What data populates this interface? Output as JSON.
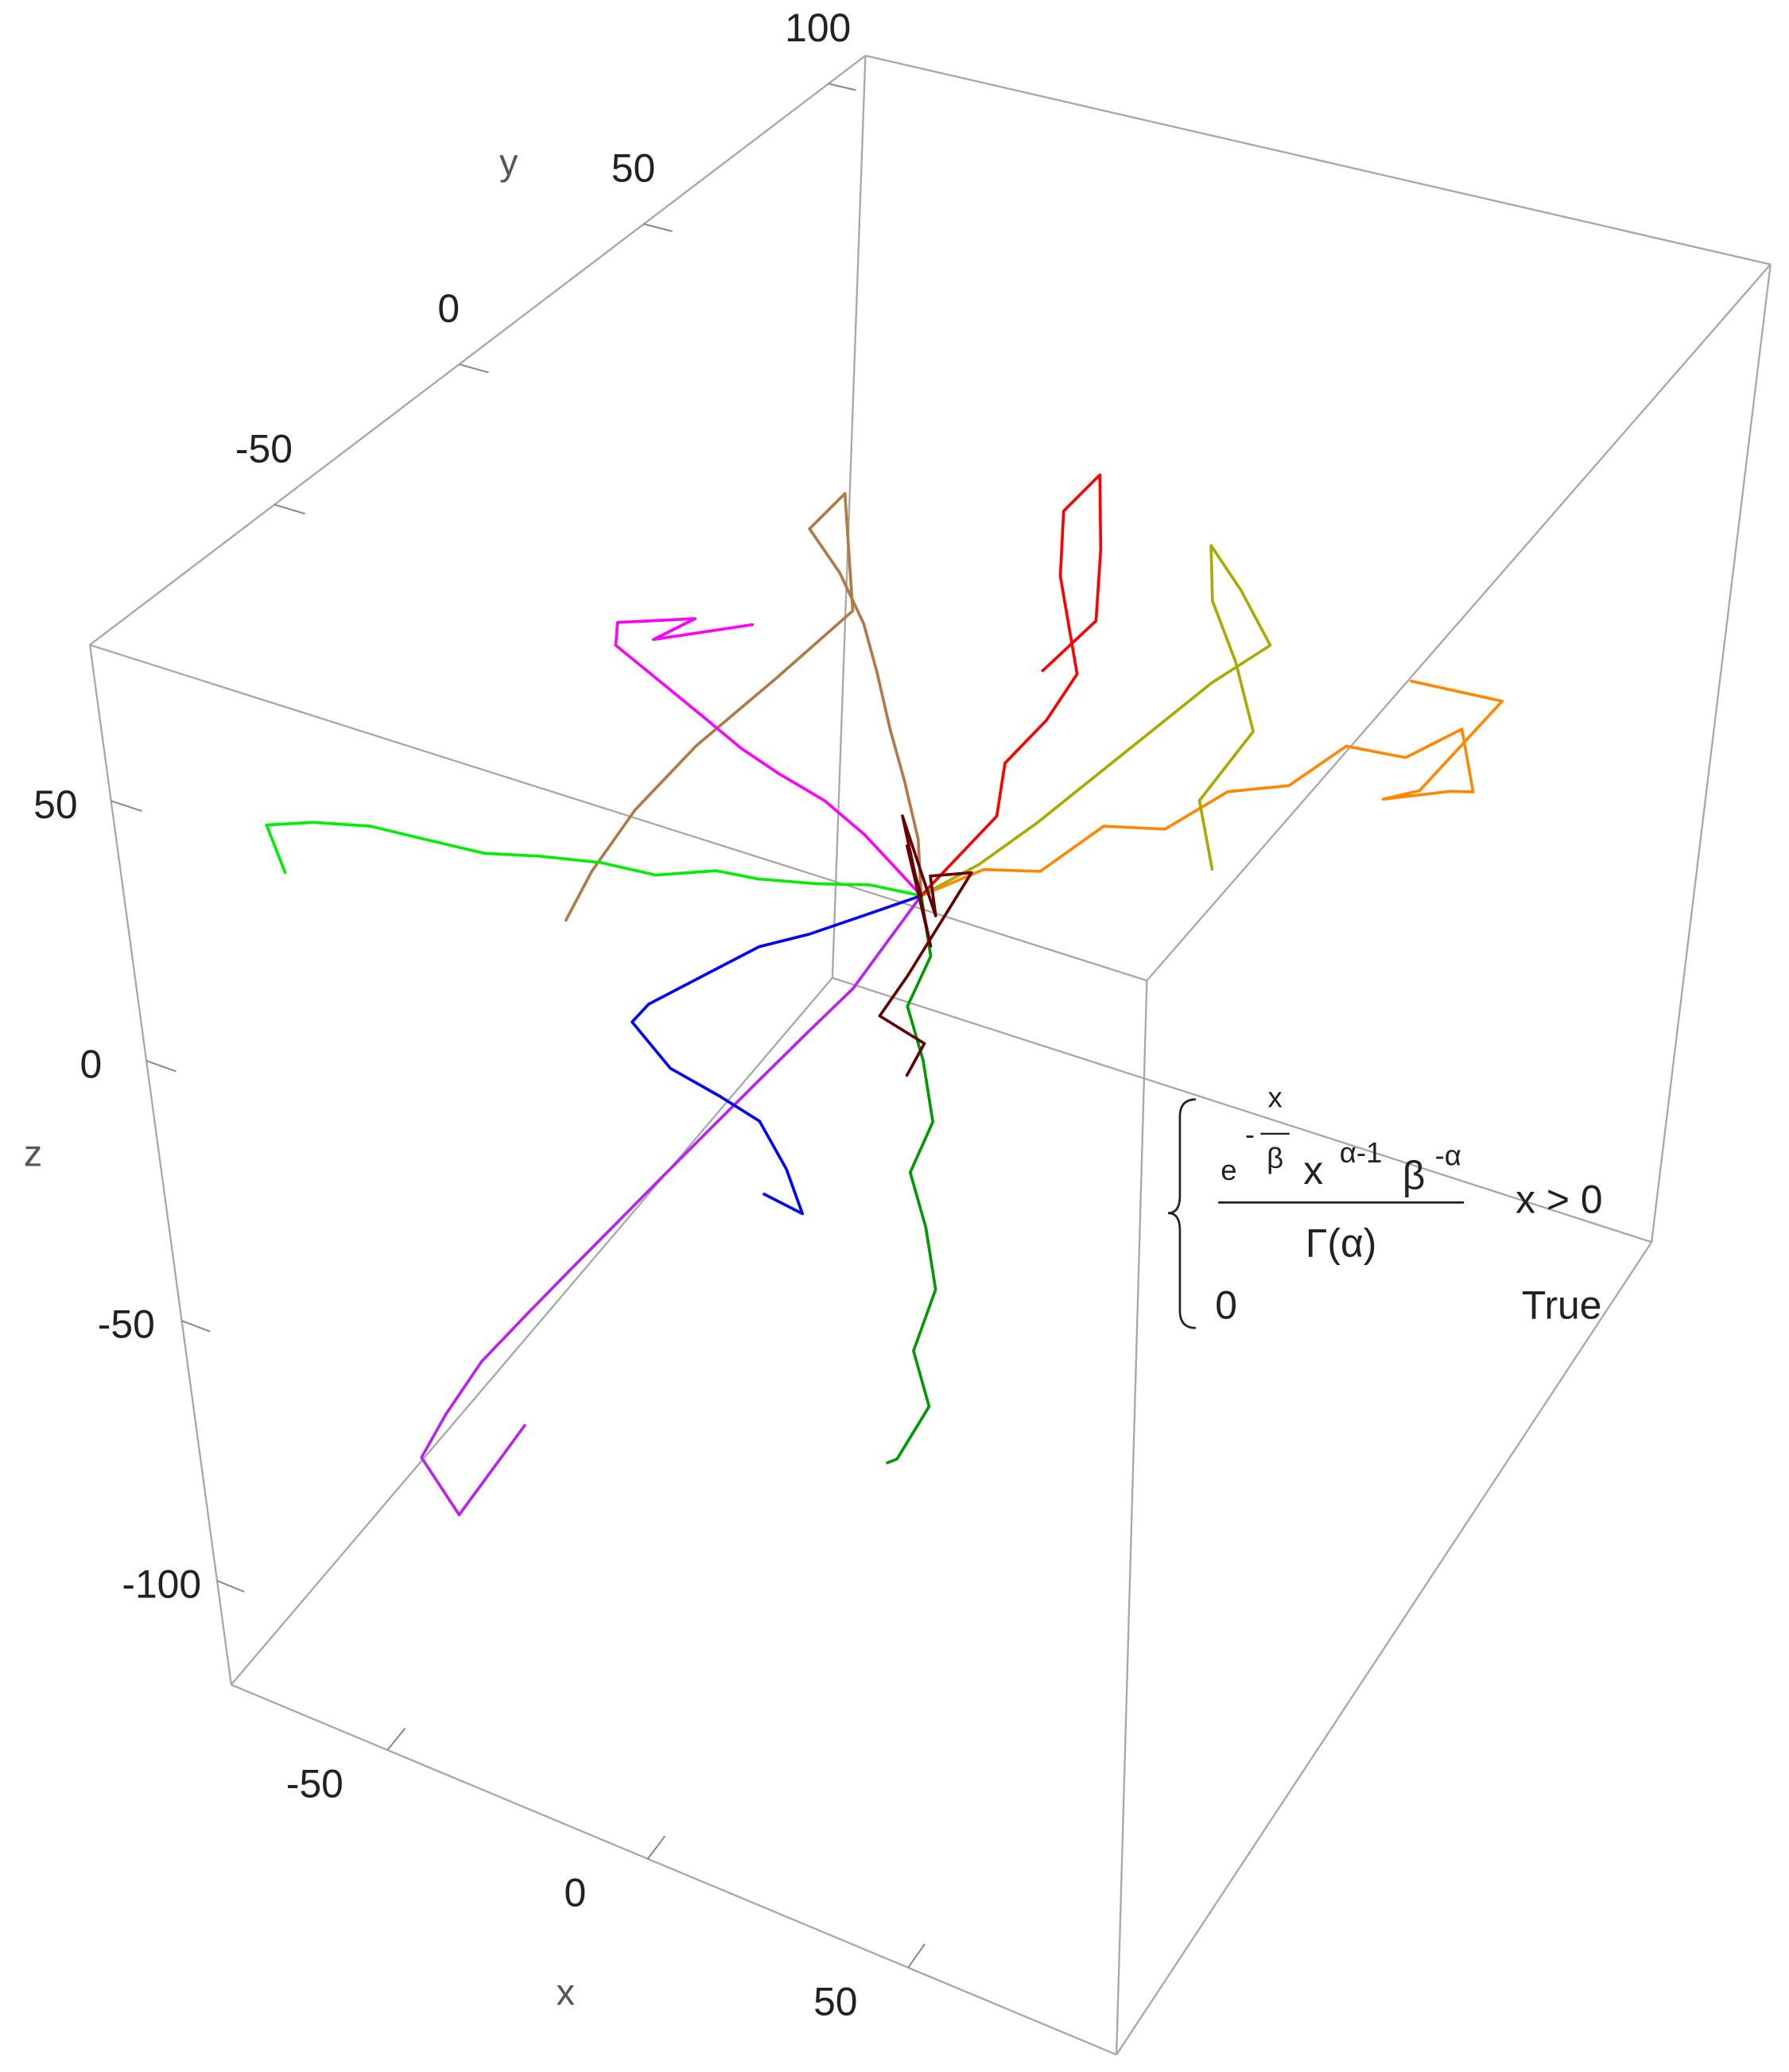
{
  "chart_data": {
    "type": "line3d",
    "xlabel": "x",
    "ylabel": "y",
    "zlabel": "z",
    "xlim": [
      -80,
      90
    ],
    "ylim": [
      -100,
      110
    ],
    "zlim": [
      -120,
      80
    ],
    "xticks": [
      -50,
      0,
      50
    ],
    "yticks": [
      -50,
      0,
      50,
      100
    ],
    "zticks": [
      -100,
      -50,
      0,
      50
    ],
    "series": [
      {
        "color": "#ff8800",
        "x": [
          0,
          8,
          15,
          22,
          30,
          38,
          45,
          52,
          60,
          66,
          70,
          62,
          55,
          64,
          72,
          58
        ],
        "y": [
          0,
          6,
          12,
          20,
          26,
          32,
          40,
          46,
          52,
          60,
          58,
          66,
          55,
          50,
          62,
          56
        ],
        "z": [
          0,
          4,
          2,
          8,
          6,
          12,
          10,
          16,
          12,
          14,
          4,
          -4,
          0,
          8,
          20,
          24
        ]
      },
      {
        "color": "#aaaa00",
        "x": [
          0,
          6,
          12,
          18,
          24,
          30,
          36,
          28,
          20,
          24,
          32,
          40,
          35,
          42
        ],
        "y": [
          0,
          8,
          16,
          24,
          32,
          40,
          48,
          52,
          56,
          50,
          44,
          36,
          28,
          20
        ],
        "z": [
          0,
          3,
          8,
          14,
          20,
          26,
          30,
          36,
          40,
          34,
          28,
          22,
          12,
          6
        ]
      },
      {
        "color": "#ff0000",
        "x": [
          0,
          4,
          8,
          6,
          10,
          12,
          8,
          4,
          2,
          6,
          10,
          14,
          8
        ],
        "y": [
          0,
          4,
          10,
          16,
          22,
          28,
          32,
          36,
          40,
          44,
          38,
          30,
          24
        ],
        "z": [
          0,
          6,
          12,
          18,
          24,
          30,
          36,
          42,
          52,
          58,
          48,
          40,
          32
        ]
      },
      {
        "color": "#b07a48",
        "x": [
          0,
          -4,
          -10,
          -16,
          -22,
          -28,
          -36,
          -44,
          -40,
          -30,
          -38,
          -48,
          -56,
          -62,
          -66
        ],
        "y": [
          0,
          6,
          12,
          18,
          24,
          30,
          36,
          40,
          44,
          30,
          20,
          12,
          6,
          2,
          0
        ],
        "z": [
          0,
          6,
          12,
          16,
          22,
          26,
          30,
          34,
          40,
          28,
          18,
          6,
          -6,
          -18,
          -28
        ]
      },
      {
        "color": "#ff00ff",
        "x": [
          0,
          -4,
          -8,
          -14,
          -20,
          -24,
          -30,
          -36,
          -42,
          -39,
          -34,
          -44,
          -30
        ],
        "y": [
          0,
          -2,
          -4,
          -6,
          -10,
          -14,
          -16,
          -18,
          -20,
          -24,
          -10,
          -6,
          0
        ],
        "z": [
          0,
          6,
          12,
          18,
          24,
          30,
          36,
          42,
          48,
          56,
          50,
          40,
          44
        ]
      },
      {
        "color": "#00ee00",
        "x": [
          0,
          -6,
          -12,
          -18,
          -22,
          -28,
          -34,
          -40,
          -46,
          -52,
          -58,
          -64,
          -67,
          -62
        ],
        "y": [
          0,
          -6,
          -12,
          -20,
          -26,
          -34,
          -40,
          -48,
          -54,
          -60,
          -66,
          -72,
          -80,
          -84
        ],
        "z": [
          0,
          4,
          6,
          10,
          14,
          16,
          20,
          24,
          26,
          30,
          34,
          36,
          39,
          34
        ]
      },
      {
        "color": "#bb22ee",
        "x": [
          0,
          -4,
          -8,
          -14,
          -20,
          -26,
          -32,
          -38,
          -44,
          -50,
          -56,
          -60,
          -63,
          -54,
          -46
        ],
        "y": [
          0,
          -4,
          -8,
          -12,
          -18,
          -24,
          -30,
          -36,
          -40,
          -44,
          -50,
          -56,
          -60,
          -64,
          -54
        ],
        "z": [
          0,
          -8,
          -16,
          -24,
          -32,
          -40,
          -48,
          -56,
          -64,
          -72,
          -80,
          -88,
          -95,
          -100,
          -86
        ]
      },
      {
        "color": "#009900",
        "x": [
          0,
          4,
          2,
          6,
          10,
          8,
          12,
          16,
          14,
          18,
          14,
          10
        ],
        "y": [
          0,
          -4,
          -8,
          -10,
          -14,
          -18,
          -20,
          -24,
          -28,
          -30,
          -34,
          -30
        ],
        "z": [
          0,
          -8,
          -16,
          -24,
          -32,
          -40,
          -48,
          -56,
          -66,
          -74,
          -83,
          -88
        ]
      },
      {
        "color": "#0000ff",
        "x": [
          0,
          -8,
          -16,
          -24,
          -32,
          -40,
          -42,
          -34,
          -26,
          -20,
          -14,
          -10,
          -16
        ],
        "y": [
          0,
          -4,
          -8,
          -10,
          -14,
          -18,
          -20,
          -22,
          -20,
          -18,
          -20,
          -22,
          -24
        ],
        "z": [
          0,
          -4,
          -8,
          -12,
          -18,
          -24,
          -27,
          -32,
          -36,
          -40,
          -46,
          -52,
          -49
        ]
      },
      {
        "color": "#660000",
        "x": [
          0,
          -6,
          4,
          -8,
          6,
          -4,
          8,
          2,
          -2,
          4,
          3
        ],
        "y": [
          0,
          6,
          -4,
          8,
          -6,
          10,
          2,
          -8,
          -10,
          -6,
          -10
        ],
        "z": [
          0,
          4,
          -6,
          8,
          2,
          -4,
          6,
          -10,
          -18,
          -24,
          -28
        ]
      }
    ],
    "annotation": {
      "e": "e",
      "exp_sign": "-",
      "exp_num": "x",
      "exp_den": "β",
      "x": "x",
      "x_power": "α-1",
      "beta": "β",
      "beta_power": "-α",
      "denominator": "Γ(α)",
      "condition1": "x > 0",
      "case2": "0",
      "condition2": "True"
    }
  }
}
